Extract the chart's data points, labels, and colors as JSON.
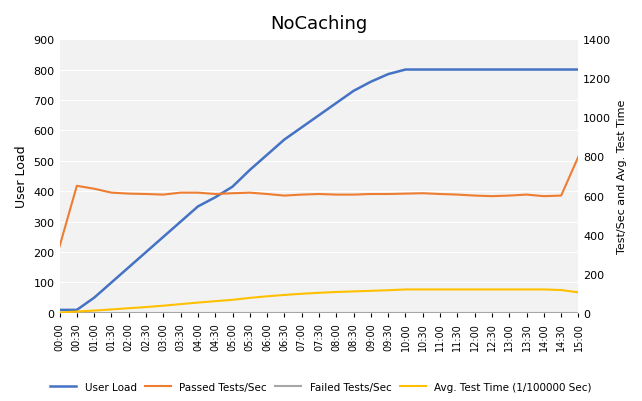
{
  "title": "NoCaching",
  "ylabel_left": "User Load",
  "ylabel_right": "Test/Sec and Avg. Test Time",
  "ylim_left": [
    0,
    900
  ],
  "ylim_right": [
    0,
    1400
  ],
  "yticks_left": [
    0,
    100,
    200,
    300,
    400,
    500,
    600,
    700,
    800,
    900
  ],
  "yticks_right": [
    0,
    200,
    400,
    600,
    800,
    1000,
    1200,
    1400
  ],
  "background_color": "#ffffff",
  "plot_bg_color": "#f2f2f2",
  "grid_color": "#ffffff",
  "time_labels": [
    "00:00",
    "00:30",
    "01:00",
    "01:30",
    "02:00",
    "02:30",
    "03:00",
    "03:30",
    "04:00",
    "04:30",
    "05:00",
    "05:30",
    "06:00",
    "06:30",
    "07:00",
    "07:30",
    "08:00",
    "08:30",
    "09:00",
    "09:30",
    "10:00",
    "10:30",
    "11:00",
    "11:30",
    "12:00",
    "12:30",
    "13:00",
    "13:30",
    "14:00",
    "14:30",
    "15:00"
  ],
  "user_load": [
    10,
    10,
    50,
    100,
    150,
    200,
    250,
    300,
    350,
    380,
    415,
    470,
    520,
    570,
    610,
    650,
    690,
    730,
    760,
    785,
    800,
    800,
    800,
    800,
    800,
    800,
    800,
    800,
    800,
    800,
    800
  ],
  "passed_tests": [
    340,
    650,
    635,
    615,
    610,
    608,
    605,
    615,
    615,
    608,
    612,
    615,
    608,
    600,
    605,
    608,
    605,
    605,
    608,
    608,
    610,
    612,
    608,
    605,
    600,
    597,
    600,
    605,
    597,
    600,
    800
  ],
  "failed_tests": [
    0,
    0,
    0,
    0,
    0,
    0,
    0,
    0,
    0,
    0,
    0,
    0,
    0,
    0,
    0,
    0,
    0,
    0,
    0,
    0,
    0,
    0,
    0,
    0,
    0,
    0,
    0,
    0,
    0,
    0,
    0
  ],
  "avg_test_time": [
    2,
    7,
    12,
    18,
    24,
    30,
    37,
    45,
    53,
    60,
    67,
    77,
    85,
    92,
    98,
    103,
    107,
    110,
    113,
    116,
    120,
    120,
    120,
    120,
    120,
    120,
    120,
    120,
    120,
    117,
    105
  ],
  "colors": {
    "user_load": "#4472c4",
    "passed_tests": "#ed7d31",
    "failed_tests": "#a6a6a6",
    "avg_test_time": "#ffc000"
  },
  "legend_labels": [
    "User Load",
    "Passed Tests/Sec",
    "Failed Tests/Sec",
    "Avg. Test Time (1/100000 Sec)"
  ]
}
